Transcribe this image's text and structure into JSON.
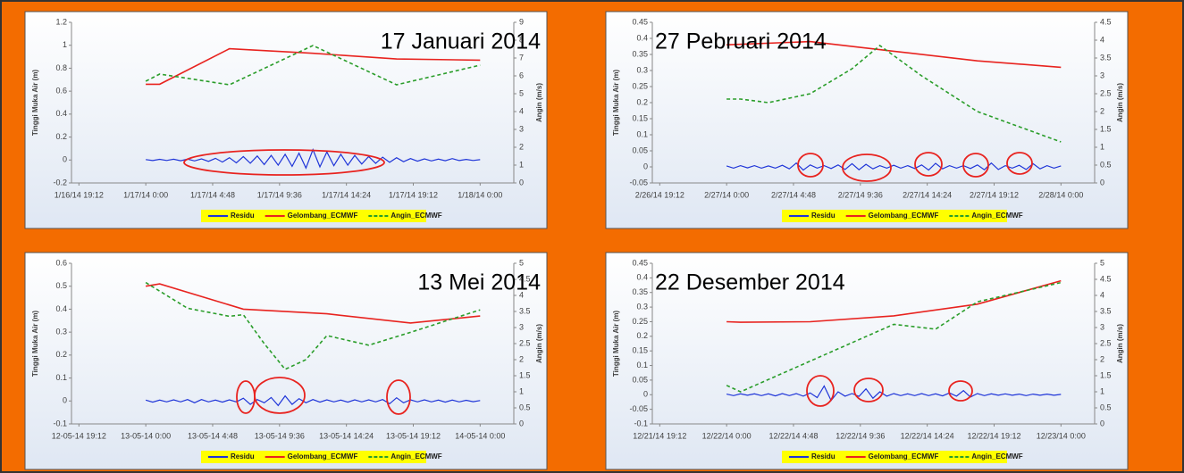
{
  "chart_data": [
    {
      "type": "line",
      "annotation": "17 Januari 2014",
      "ylabel": "Tinggi Muka Air (m)",
      "y2label": "Angin (m/s)",
      "xlim": [
        "2014-01-16T18:40",
        "2014-01-18T02:25"
      ],
      "xticks": [
        {
          "value": "2014-01-16T19:12",
          "label": "1/16/14 19:12"
        },
        {
          "value": "2014-01-17T00:00",
          "label": "1/17/14 0:00"
        },
        {
          "value": "2014-01-17T04:48",
          "label": "1/17/14 4:48"
        },
        {
          "value": "2014-01-17T09:36",
          "label": "1/17/14 9:36"
        },
        {
          "value": "2014-01-17T14:24",
          "label": "1/17/14 14:24"
        },
        {
          "value": "2014-01-17T19:12",
          "label": "1/17/14 19:12"
        },
        {
          "value": "2014-01-18T00:00",
          "label": "1/18/14 0:00"
        }
      ],
      "ylim": [
        -0.2,
        1.2
      ],
      "yticks": [
        -0.2,
        0,
        0.2,
        0.4,
        0.6,
        0.8,
        1,
        1.2
      ],
      "y2lim": [
        0,
        9
      ],
      "y2ticks": [
        0,
        1,
        2,
        3,
        4,
        5,
        6,
        7,
        8,
        9
      ],
      "grid": false,
      "x": [
        "2014-01-17T00:00",
        "2014-01-17T00:30",
        "2014-01-17T01:00",
        "2014-01-17T01:30",
        "2014-01-17T02:00",
        "2014-01-17T02:30",
        "2014-01-17T03:00",
        "2014-01-17T03:30",
        "2014-01-17T04:00",
        "2014-01-17T04:30",
        "2014-01-17T05:00",
        "2014-01-17T05:30",
        "2014-01-17T06:00",
        "2014-01-17T06:30",
        "2014-01-17T07:00",
        "2014-01-17T07:30",
        "2014-01-17T08:00",
        "2014-01-17T08:30",
        "2014-01-17T09:00",
        "2014-01-17T09:30",
        "2014-01-17T10:00",
        "2014-01-17T10:30",
        "2014-01-17T11:00",
        "2014-01-17T11:30",
        "2014-01-17T12:00",
        "2014-01-17T12:30",
        "2014-01-17T13:00",
        "2014-01-17T13:30",
        "2014-01-17T14:00",
        "2014-01-17T14:30",
        "2014-01-17T15:00",
        "2014-01-17T15:30",
        "2014-01-17T16:00",
        "2014-01-17T16:30",
        "2014-01-17T17:00",
        "2014-01-17T17:30",
        "2014-01-17T18:00",
        "2014-01-17T18:30",
        "2014-01-17T19:00",
        "2014-01-17T19:30",
        "2014-01-17T20:00",
        "2014-01-17T20:30",
        "2014-01-17T21:00",
        "2014-01-17T21:30",
        "2014-01-17T22:00",
        "2014-01-17T22:30",
        "2014-01-17T23:00",
        "2014-01-17T23:30",
        "2014-01-18T00:00"
      ],
      "series": [
        {
          "name": "Residu",
          "color": "#1f35d8",
          "dashed": false,
          "values": [
            0.004,
            -0.005,
            0.006,
            -0.004,
            0.007,
            -0.006,
            0.008,
            -0.008,
            0.01,
            -0.012,
            0.015,
            -0.018,
            0.02,
            -0.025,
            0.03,
            -0.028,
            0.035,
            -0.04,
            0.04,
            -0.045,
            0.05,
            -0.055,
            0.06,
            -0.07,
            0.09,
            -0.06,
            0.07,
            -0.05,
            0.05,
            -0.045,
            0.04,
            -0.035,
            0.03,
            -0.03,
            0.025,
            -0.02,
            0.02,
            -0.015,
            0.012,
            -0.01,
            0.01,
            -0.008,
            0.008,
            -0.006,
            0.012,
            -0.005,
            0.005,
            -0.004,
            0.003
          ]
        },
        {
          "name": "Gelombang_ECMWF",
          "color": "#e8231f",
          "dashed": false,
          "x": [
            "2014-01-17T00:00",
            "2014-01-17T01:00",
            "2014-01-17T06:00",
            "2014-01-17T12:00",
            "2014-01-17T18:00",
            "2014-01-18T00:00"
          ],
          "values": [
            0.66,
            0.66,
            0.97,
            0.93,
            0.88,
            0.87
          ]
        },
        {
          "name": "Angin_ECMWF",
          "color": "#2a9d2a",
          "dashed": true,
          "axis": "y2",
          "x": [
            "2014-01-17T00:00",
            "2014-01-17T01:00",
            "2014-01-17T06:00",
            "2014-01-17T12:00",
            "2014-01-17T18:00",
            "2014-01-18T00:00"
          ],
          "values": [
            5.7,
            6.1,
            5.5,
            7.7,
            5.5,
            6.6
          ]
        }
      ]
    },
    {
      "type": "line",
      "annotation": "27 Pebruari 2014",
      "ylabel": "Tinggi Muka Air (m)",
      "y2label": "Angin (m/s)",
      "xlim": [
        "2014-02-26T18:40",
        "2014-02-28T02:25"
      ],
      "xticks": [
        {
          "value": "2014-02-26T19:12",
          "label": "2/26/14 19:12"
        },
        {
          "value": "2014-02-27T00:00",
          "label": "2/27/14 0:00"
        },
        {
          "value": "2014-02-27T04:48",
          "label": "2/27/14 4:48"
        },
        {
          "value": "2014-02-27T09:36",
          "label": "2/27/14 9:36"
        },
        {
          "value": "2014-02-27T14:24",
          "label": "2/27/14 14:24"
        },
        {
          "value": "2014-02-27T19:12",
          "label": "2/27/14 19:12"
        },
        {
          "value": "2014-02-28T00:00",
          "label": "2/28/14 0:00"
        }
      ],
      "ylim": [
        -0.05,
        0.45
      ],
      "yticks": [
        -0.05,
        0,
        0.05,
        0.1,
        0.15,
        0.2,
        0.25,
        0.3,
        0.35,
        0.4,
        0.45
      ],
      "y2lim": [
        0,
        4.5
      ],
      "y2ticks": [
        0,
        0.5,
        1,
        1.5,
        2,
        2.5,
        3,
        3.5,
        4,
        4.5
      ],
      "grid": false,
      "x": [
        "2014-02-27T00:00",
        "2014-02-27T00:30",
        "2014-02-27T01:00",
        "2014-02-27T01:30",
        "2014-02-27T02:00",
        "2014-02-27T02:30",
        "2014-02-27T03:00",
        "2014-02-27T03:30",
        "2014-02-27T04:00",
        "2014-02-27T04:30",
        "2014-02-27T05:00",
        "2014-02-27T05:30",
        "2014-02-27T06:00",
        "2014-02-27T06:30",
        "2014-02-27T07:00",
        "2014-02-27T07:30",
        "2014-02-27T08:00",
        "2014-02-27T08:30",
        "2014-02-27T09:00",
        "2014-02-27T09:30",
        "2014-02-27T10:00",
        "2014-02-27T10:30",
        "2014-02-27T11:00",
        "2014-02-27T11:30",
        "2014-02-27T12:00",
        "2014-02-27T12:30",
        "2014-02-27T13:00",
        "2014-02-27T13:30",
        "2014-02-27T14:00",
        "2014-02-27T14:30",
        "2014-02-27T15:00",
        "2014-02-27T15:30",
        "2014-02-27T16:00",
        "2014-02-27T16:30",
        "2014-02-27T17:00",
        "2014-02-27T17:30",
        "2014-02-27T18:00",
        "2014-02-27T18:30",
        "2014-02-27T19:00",
        "2014-02-27T19:30",
        "2014-02-27T20:00",
        "2014-02-27T20:30",
        "2014-02-27T21:00",
        "2014-02-27T21:30",
        "2014-02-27T22:00",
        "2014-02-27T22:30",
        "2014-02-27T23:00",
        "2014-02-27T23:30",
        "2014-02-28T00:00"
      ],
      "series": [
        {
          "name": "Residu",
          "color": "#1f35d8",
          "dashed": false,
          "values": [
            0.003,
            -0.004,
            0.004,
            -0.003,
            0.004,
            -0.004,
            0.003,
            -0.004,
            0.005,
            -0.006,
            0.012,
            -0.01,
            0.006,
            -0.004,
            0.004,
            -0.005,
            0.006,
            -0.008,
            0.01,
            -0.009,
            0.008,
            -0.006,
            0.004,
            -0.004,
            0.005,
            -0.004,
            0.004,
            -0.005,
            0.006,
            -0.01,
            0.011,
            -0.006,
            0.004,
            -0.004,
            0.004,
            -0.005,
            0.006,
            -0.009,
            0.012,
            -0.008,
            0.004,
            -0.004,
            0.005,
            -0.008,
            0.01,
            -0.006,
            0.004,
            -0.004,
            0.003
          ]
        },
        {
          "name": "Gelombang_ECMWF",
          "color": "#e8231f",
          "dashed": false,
          "x": [
            "2014-02-27T00:00",
            "2014-02-27T06:00",
            "2014-02-27T12:00",
            "2014-02-27T18:00",
            "2014-02-28T00:00"
          ],
          "values": [
            0.38,
            0.39,
            0.36,
            0.33,
            0.31
          ]
        },
        {
          "name": "Angin_ECMWF",
          "color": "#2a9d2a",
          "dashed": true,
          "axis": "y2",
          "x": [
            "2014-02-27T00:00",
            "2014-02-27T01:00",
            "2014-02-27T03:00",
            "2014-02-27T06:00",
            "2014-02-27T09:00",
            "2014-02-27T11:00",
            "2014-02-27T14:00",
            "2014-02-27T18:00",
            "2014-02-28T00:00"
          ],
          "values": [
            2.35,
            2.35,
            2.25,
            2.5,
            3.2,
            3.85,
            3.0,
            2.0,
            1.15
          ]
        }
      ]
    },
    {
      "type": "line",
      "annotation": "13 Mei 2014",
      "ylabel": "Tinggi Muka Air (m)",
      "y2label": "Angin (m/s)",
      "xlim": [
        "2014-05-12T18:40",
        "2014-05-14T02:25"
      ],
      "xticks": [
        {
          "value": "2014-05-12T19:12",
          "label": "12-05-14 19:12"
        },
        {
          "value": "2014-05-13T00:00",
          "label": "13-05-14 0:00"
        },
        {
          "value": "2014-05-13T04:48",
          "label": "13-05-14 4:48"
        },
        {
          "value": "2014-05-13T09:36",
          "label": "13-05-14 9:36"
        },
        {
          "value": "2014-05-13T14:24",
          "label": "13-05-14 14:24"
        },
        {
          "value": "2014-05-13T19:12",
          "label": "13-05-14 19:12"
        },
        {
          "value": "2014-05-14T00:00",
          "label": "14-05-14 0:00"
        }
      ],
      "ylim": [
        -0.1,
        0.6
      ],
      "yticks": [
        -0.1,
        0,
        0.1,
        0.2,
        0.3,
        0.4,
        0.5,
        0.6
      ],
      "y2lim": [
        0,
        5
      ],
      "y2ticks": [
        0,
        0.5,
        1,
        1.5,
        2,
        2.5,
        3,
        3.5,
        4,
        4.5,
        5
      ],
      "grid": false,
      "x": [
        "2014-05-13T00:00",
        "2014-05-13T00:30",
        "2014-05-13T01:00",
        "2014-05-13T01:30",
        "2014-05-13T02:00",
        "2014-05-13T02:30",
        "2014-05-13T03:00",
        "2014-05-13T03:30",
        "2014-05-13T04:00",
        "2014-05-13T04:30",
        "2014-05-13T05:00",
        "2014-05-13T05:30",
        "2014-05-13T06:00",
        "2014-05-13T06:30",
        "2014-05-13T07:00",
        "2014-05-13T07:30",
        "2014-05-13T08:00",
        "2014-05-13T08:30",
        "2014-05-13T09:00",
        "2014-05-13T09:30",
        "2014-05-13T10:00",
        "2014-05-13T10:30",
        "2014-05-13T11:00",
        "2014-05-13T11:30",
        "2014-05-13T12:00",
        "2014-05-13T12:30",
        "2014-05-13T13:00",
        "2014-05-13T13:30",
        "2014-05-13T14:00",
        "2014-05-13T14:30",
        "2014-05-13T15:00",
        "2014-05-13T15:30",
        "2014-05-13T16:00",
        "2014-05-13T16:30",
        "2014-05-13T17:00",
        "2014-05-13T17:30",
        "2014-05-13T18:00",
        "2014-05-13T18:30",
        "2014-05-13T19:00",
        "2014-05-13T19:30",
        "2014-05-13T20:00",
        "2014-05-13T20:30",
        "2014-05-13T21:00",
        "2014-05-13T21:30",
        "2014-05-13T22:00",
        "2014-05-13T22:30",
        "2014-05-13T23:00",
        "2014-05-13T23:30",
        "2014-05-14T00:00"
      ],
      "series": [
        {
          "name": "Residu",
          "color": "#1f35d8",
          "dashed": false,
          "values": [
            0.004,
            -0.005,
            0.004,
            -0.004,
            0.005,
            -0.004,
            0.006,
            -0.008,
            0.006,
            -0.004,
            0.004,
            -0.005,
            0.005,
            -0.004,
            0.012,
            -0.015,
            0.006,
            -0.008,
            0.015,
            -0.02,
            0.022,
            -0.015,
            0.01,
            -0.008,
            0.006,
            -0.005,
            0.005,
            -0.004,
            0.004,
            -0.005,
            0.005,
            -0.004,
            0.005,
            -0.004,
            0.006,
            -0.012,
            0.014,
            -0.008,
            0.005,
            -0.004,
            0.005,
            -0.004,
            0.004,
            -0.005,
            0.004,
            -0.004,
            0.003,
            -0.003,
            0.002
          ]
        },
        {
          "name": "Gelombang_ECMWF",
          "color": "#e8231f",
          "dashed": false,
          "x": [
            "2014-05-13T00:00",
            "2014-05-13T01:00",
            "2014-05-13T07:00",
            "2014-05-13T13:00",
            "2014-05-13T19:00",
            "2014-05-14T00:00"
          ],
          "values": [
            0.5,
            0.51,
            0.4,
            0.38,
            0.34,
            0.37
          ]
        },
        {
          "name": "Angin_ECMWF",
          "color": "#2a9d2a",
          "dashed": true,
          "axis": "y2",
          "x": [
            "2014-05-13T00:00",
            "2014-05-13T03:00",
            "2014-05-13T06:00",
            "2014-05-13T07:00",
            "2014-05-13T08:30",
            "2014-05-13T10:00",
            "2014-05-13T11:30",
            "2014-05-13T13:00",
            "2014-05-13T16:00",
            "2014-05-13T19:00",
            "2014-05-14T00:00"
          ],
          "values": [
            4.4,
            3.6,
            3.35,
            3.4,
            2.5,
            1.7,
            2.0,
            2.75,
            2.45,
            2.85,
            3.55
          ]
        }
      ]
    },
    {
      "type": "line",
      "annotation": "22 Desember 2014",
      "ylabel": "Tinggi Muka Air (m)",
      "y2label": "Angin (m/s)",
      "xlim": [
        "2014-12-21T18:40",
        "2014-12-23T02:25"
      ],
      "xticks": [
        {
          "value": "2014-12-21T19:12",
          "label": "12/21/14 19:12"
        },
        {
          "value": "2014-12-22T00:00",
          "label": "12/22/14 0:00"
        },
        {
          "value": "2014-12-22T04:48",
          "label": "12/22/14 4:48"
        },
        {
          "value": "2014-12-22T09:36",
          "label": "12/22/14 9:36"
        },
        {
          "value": "2014-12-22T14:24",
          "label": "12/22/14 14:24"
        },
        {
          "value": "2014-12-22T19:12",
          "label": "12/22/14 19:12"
        },
        {
          "value": "2014-12-23T00:00",
          "label": "12/23/14 0:00"
        }
      ],
      "ylim": [
        -0.1,
        0.45
      ],
      "yticks": [
        -0.1,
        -0.05,
        0,
        0.05,
        0.1,
        0.15,
        0.2,
        0.25,
        0.3,
        0.35,
        0.4,
        0.45
      ],
      "y2lim": [
        0,
        5
      ],
      "y2ticks": [
        0,
        0.5,
        1,
        1.5,
        2,
        2.5,
        3,
        3.5,
        4,
        4.5,
        5
      ],
      "grid": false,
      "x": [
        "2014-12-22T00:00",
        "2014-12-22T00:30",
        "2014-12-22T01:00",
        "2014-12-22T01:30",
        "2014-12-22T02:00",
        "2014-12-22T02:30",
        "2014-12-22T03:00",
        "2014-12-22T03:30",
        "2014-12-22T04:00",
        "2014-12-22T04:30",
        "2014-12-22T05:00",
        "2014-12-22T05:30",
        "2014-12-22T06:00",
        "2014-12-22T06:30",
        "2014-12-22T07:00",
        "2014-12-22T07:30",
        "2014-12-22T08:00",
        "2014-12-22T08:30",
        "2014-12-22T09:00",
        "2014-12-22T09:30",
        "2014-12-22T10:00",
        "2014-12-22T10:30",
        "2014-12-22T11:00",
        "2014-12-22T11:30",
        "2014-12-22T12:00",
        "2014-12-22T12:30",
        "2014-12-22T13:00",
        "2014-12-22T13:30",
        "2014-12-22T14:00",
        "2014-12-22T14:30",
        "2014-12-22T15:00",
        "2014-12-22T15:30",
        "2014-12-22T16:00",
        "2014-12-22T16:30",
        "2014-12-22T17:00",
        "2014-12-22T17:30",
        "2014-12-22T18:00",
        "2014-12-22T18:30",
        "2014-12-22T19:00",
        "2014-12-22T19:30",
        "2014-12-22T20:00",
        "2014-12-22T20:30",
        "2014-12-22T21:00",
        "2014-12-22T21:30",
        "2014-12-22T22:00",
        "2014-12-22T22:30",
        "2014-12-22T23:00",
        "2014-12-22T23:30",
        "2014-12-23T00:00"
      ],
      "series": [
        {
          "name": "Residu",
          "color": "#1f35d8",
          "dashed": false,
          "values": [
            0.002,
            -0.003,
            0.003,
            -0.002,
            0.003,
            -0.003,
            0.003,
            -0.004,
            0.004,
            -0.003,
            0.004,
            -0.005,
            0.006,
            -0.01,
            0.03,
            -0.02,
            0.01,
            -0.005,
            0.004,
            -0.006,
            0.02,
            -0.012,
            0.01,
            -0.005,
            0.004,
            -0.003,
            0.003,
            -0.003,
            0.004,
            -0.003,
            0.003,
            -0.004,
            0.006,
            -0.005,
            0.014,
            -0.008,
            0.004,
            -0.003,
            0.003,
            -0.002,
            0.003,
            -0.002,
            0.002,
            -0.003,
            0.002,
            -0.002,
            0.002,
            -0.002,
            0.001
          ]
        },
        {
          "name": "Gelombang_ECMWF",
          "color": "#e8231f",
          "dashed": false,
          "x": [
            "2014-12-22T00:00",
            "2014-12-22T01:00",
            "2014-12-22T06:00",
            "2014-12-22T12:00",
            "2014-12-22T18:00",
            "2014-12-23T00:00"
          ],
          "values": [
            0.25,
            0.248,
            0.25,
            0.27,
            0.31,
            0.39
          ]
        },
        {
          "name": "Angin_ECMWF",
          "color": "#2a9d2a",
          "dashed": true,
          "axis": "y2",
          "x": [
            "2014-12-22T00:00",
            "2014-12-22T01:00",
            "2014-12-22T12:00",
            "2014-12-22T15:00",
            "2014-12-22T18:00",
            "2014-12-23T00:00"
          ],
          "values": [
            1.2,
            1.0,
            3.1,
            2.95,
            3.8,
            4.4
          ]
        }
      ]
    }
  ]
}
